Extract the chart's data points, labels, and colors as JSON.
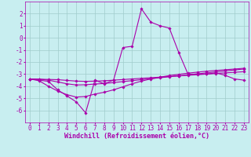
{
  "xlabel": "Windchill (Refroidissement éolien,°C)",
  "background_color": "#c8eef0",
  "grid_color": "#a0cccc",
  "line_color": "#aa00aa",
  "x_values": [
    0,
    1,
    2,
    3,
    4,
    5,
    6,
    7,
    8,
    9,
    10,
    11,
    12,
    13,
    14,
    15,
    16,
    17,
    18,
    19,
    20,
    21,
    22,
    23
  ],
  "series": [
    [
      -3.4,
      -3.5,
      -3.6,
      -4.3,
      -4.8,
      -5.3,
      -6.2,
      -3.5,
      -3.8,
      -3.5,
      -0.8,
      -0.7,
      2.4,
      1.3,
      1.0,
      0.8,
      -1.2,
      -3.0,
      -3.0,
      -3.0,
      -2.9,
      -3.1,
      -3.4,
      -3.5
    ],
    [
      -3.4,
      -3.42,
      -3.44,
      -3.46,
      -3.52,
      -3.58,
      -3.6,
      -3.58,
      -3.55,
      -3.5,
      -3.45,
      -3.4,
      -3.35,
      -3.3,
      -3.25,
      -3.2,
      -3.15,
      -3.1,
      -3.05,
      -3.0,
      -2.95,
      -2.9,
      -2.85,
      -2.8
    ],
    [
      -3.4,
      -3.42,
      -3.5,
      -3.65,
      -3.8,
      -3.9,
      -3.88,
      -3.82,
      -3.78,
      -3.7,
      -3.62,
      -3.54,
      -3.46,
      -3.38,
      -3.3,
      -3.22,
      -3.14,
      -3.06,
      -2.98,
      -2.9,
      -2.82,
      -2.74,
      -2.66,
      -2.58
    ],
    [
      -3.4,
      -3.55,
      -4.0,
      -4.4,
      -4.7,
      -4.9,
      -4.85,
      -4.65,
      -4.5,
      -4.3,
      -4.05,
      -3.8,
      -3.58,
      -3.4,
      -3.25,
      -3.12,
      -3.02,
      -2.92,
      -2.84,
      -2.76,
      -2.7,
      -2.64,
      -2.58,
      -2.52
    ]
  ],
  "ylim": [
    -7,
    3
  ],
  "xlim": [
    -0.5,
    23.5
  ],
  "yticks": [
    -6,
    -5,
    -4,
    -3,
    -2,
    -1,
    0,
    1,
    2
  ],
  "xticks": [
    0,
    1,
    2,
    3,
    4,
    5,
    6,
    7,
    8,
    9,
    10,
    11,
    12,
    13,
    14,
    15,
    16,
    17,
    18,
    19,
    20,
    21,
    22,
    23
  ],
  "marker": "D",
  "marker_size": 1.8,
  "line_width": 0.8,
  "xlabel_fontsize": 6.0,
  "tick_fontsize": 5.5
}
